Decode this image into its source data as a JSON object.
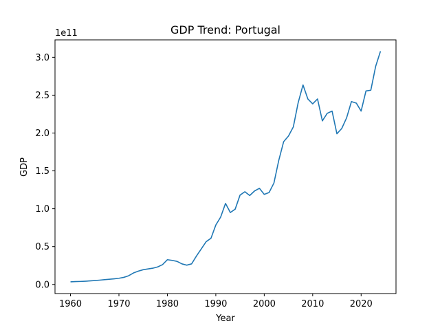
{
  "chart_data": {
    "type": "line",
    "title": "GDP Trend: Portugal",
    "xlabel": "Year",
    "ylabel": "GDP",
    "y_offset_label": "1e11",
    "xlim": [
      1956.8,
      2027.2
    ],
    "ylim": [
      -0.12,
      3.23
    ],
    "y_scale_exponent": 11,
    "x_ticks": [
      1960,
      1970,
      1980,
      1990,
      2000,
      2010,
      2020
    ],
    "x_tick_labels": [
      "1960",
      "1970",
      "1980",
      "1990",
      "2000",
      "2010",
      "2020"
    ],
    "y_ticks": [
      0.0,
      0.5,
      1.0,
      1.5,
      2.0,
      2.5,
      3.0
    ],
    "y_tick_labels": [
      "0.0",
      "0.5",
      "1.0",
      "1.5",
      "2.0",
      "2.5",
      "3.0"
    ],
    "grid": false,
    "line_color": "#1f77b4",
    "series": [
      {
        "x": [
          1960,
          1961,
          1962,
          1963,
          1964,
          1965,
          1966,
          1967,
          1968,
          1969,
          1970,
          1971,
          1972,
          1973,
          1974,
          1975,
          1976,
          1977,
          1978,
          1979,
          1980,
          1981,
          1982,
          1983,
          1984,
          1985,
          1986,
          1987,
          1988,
          1989,
          1990,
          1991,
          1992,
          1993,
          1994,
          1995,
          1996,
          1997,
          1998,
          1999,
          2000,
          2001,
          2002,
          2003,
          2004,
          2005,
          2006,
          2007,
          2008,
          2009,
          2010,
          2011,
          2012,
          2013,
          2014,
          2015,
          2016,
          2017,
          2018,
          2019,
          2020,
          2021,
          2022,
          2023,
          2024
        ],
        "values": [
          0.035,
          0.038,
          0.04,
          0.043,
          0.047,
          0.052,
          0.057,
          0.063,
          0.069,
          0.075,
          0.082,
          0.094,
          0.115,
          0.152,
          0.176,
          0.195,
          0.205,
          0.215,
          0.232,
          0.262,
          0.327,
          0.318,
          0.305,
          0.272,
          0.255,
          0.272,
          0.375,
          0.47,
          0.565,
          0.61,
          0.785,
          0.89,
          1.07,
          0.95,
          0.995,
          1.18,
          1.225,
          1.175,
          1.235,
          1.27,
          1.19,
          1.215,
          1.34,
          1.64,
          1.885,
          1.96,
          2.08,
          2.4,
          2.635,
          2.45,
          2.385,
          2.45,
          2.16,
          2.26,
          2.29,
          1.99,
          2.06,
          2.2,
          2.415,
          2.395,
          2.29,
          2.555,
          2.565,
          2.88,
          3.08
        ]
      }
    ]
  }
}
